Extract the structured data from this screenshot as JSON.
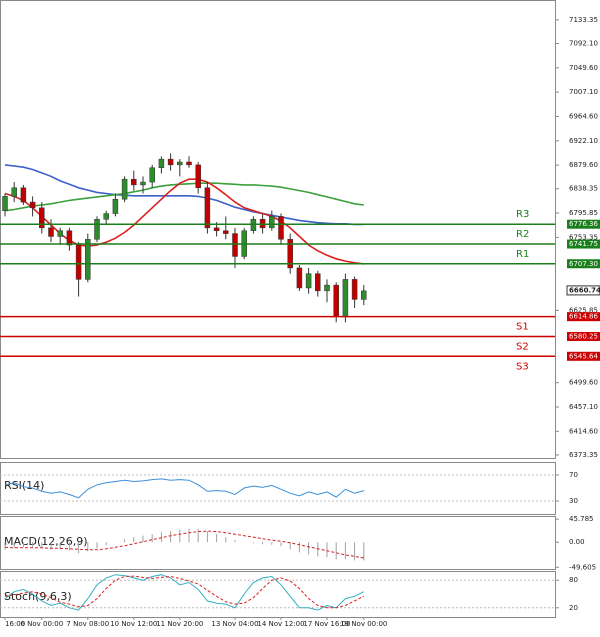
{
  "chart_data": [
    {
      "type": "candlestick",
      "categories": [
        "16:00",
        null,
        null,
        null,
        "6 Nov 00:00",
        null,
        null,
        null,
        null,
        "7 Nov 08:00",
        null,
        null,
        null,
        null,
        "10 Nov 12:00",
        null,
        null,
        null,
        null,
        "11 Nov 20:00",
        null,
        null,
        null,
        null,
        null,
        "13 Nov 04:00",
        null,
        null,
        null,
        null,
        "14 Nov 12:00",
        null,
        null,
        null,
        null,
        "17 Nov 16:00",
        null,
        null,
        null,
        "19 Nov 00:00"
      ],
      "open": [
        6800,
        6825,
        6840,
        6815,
        6805,
        6770,
        6755,
        6765,
        6740,
        6680,
        6750,
        6785,
        6795,
        6820,
        6855,
        6845,
        6850,
        6875,
        6890,
        6880,
        6885,
        6880,
        6840,
        6770,
        6765,
        6760,
        6720,
        6765,
        6785,
        6770,
        6790,
        6750,
        6700,
        6665,
        6690,
        6660,
        6670,
        6615,
        6680,
        6645
      ],
      "high": [
        6830,
        6850,
        6845,
        6825,
        6815,
        6785,
        6770,
        6770,
        6745,
        6760,
        6790,
        6800,
        6830,
        6860,
        6870,
        6860,
        6880,
        6895,
        6900,
        6890,
        6895,
        6885,
        6850,
        6780,
        6790,
        6770,
        6770,
        6790,
        6795,
        6800,
        6795,
        6760,
        6705,
        6700,
        6695,
        6680,
        6675,
        6690,
        6685,
        6670
      ],
      "low": [
        6790,
        6815,
        6810,
        6790,
        6760,
        6745,
        6740,
        6730,
        6650,
        6675,
        6745,
        6775,
        6790,
        6815,
        6835,
        6830,
        6840,
        6865,
        6870,
        6860,
        6875,
        6830,
        6760,
        6755,
        6750,
        6700,
        6715,
        6760,
        6760,
        6765,
        6740,
        6690,
        6660,
        6655,
        6650,
        6640,
        6605,
        6605,
        6630,
        6635
      ],
      "close": [
        6825,
        6840,
        6815,
        6805,
        6770,
        6755,
        6765,
        6740,
        6680,
        6750,
        6785,
        6795,
        6820,
        6855,
        6845,
        6850,
        6875,
        6890,
        6880,
        6885,
        6880,
        6840,
        6770,
        6765,
        6760,
        6720,
        6765,
        6785,
        6770,
        6790,
        6750,
        6700,
        6665,
        6690,
        6660,
        6670,
        6615,
        6680,
        6645,
        6660
      ],
      "up_color": "#2e8b2e",
      "down_color": "#c00000",
      "lines": [
        {
          "color": "#3c5fc8",
          "values": [
            6880,
            6878,
            6876,
            6872,
            6866,
            6860,
            6852,
            6846,
            6840,
            6836,
            6832,
            6830,
            6828,
            6827,
            6826,
            6826,
            6826,
            6826,
            6826,
            6826,
            6826,
            6825,
            6822,
            6818,
            6812,
            6806,
            6802,
            6798,
            6795,
            6792,
            6789,
            6786,
            6783,
            6781,
            6779,
            6778,
            6777,
            6777,
            6776,
            6776
          ]
        },
        {
          "color": "#3ca03c",
          "values": [
            6800,
            6802,
            6805,
            6808,
            6810,
            6812,
            6815,
            6818,
            6820,
            6822,
            6824,
            6826,
            6828,
            6830,
            6833,
            6836,
            6840,
            6843,
            6845,
            6846,
            6847,
            6848,
            6848,
            6848,
            6847,
            6846,
            6845,
            6845,
            6844,
            6843,
            6841,
            6838,
            6835,
            6832,
            6828,
            6824,
            6820,
            6816,
            6812,
            6810
          ]
        },
        {
          "color": "#d82020",
          "values": [
            6830,
            6825,
            6818,
            6805,
            6790,
            6775,
            6760,
            6748,
            6740,
            6738,
            6740,
            6745,
            6752,
            6762,
            6775,
            6790,
            6805,
            6820,
            6835,
            6848,
            6855,
            6855,
            6850,
            6840,
            6828,
            6815,
            6805,
            6800,
            6795,
            6790,
            6782,
            6770,
            6755,
            6740,
            6730,
            6722,
            6716,
            6712,
            6709,
            6707
          ]
        }
      ],
      "levels": [
        {
          "label": "R3",
          "value": 6776.36,
          "color": "#1a7f1a"
        },
        {
          "label": "R2",
          "value": 6741.75,
          "color": "#1a7f1a"
        },
        {
          "label": "R1",
          "value": 6707.3,
          "value_label": "6707.30",
          "color": "#1a7f1a"
        },
        {
          "label": "S1",
          "value": 6614.86,
          "color": "#cc0000"
        },
        {
          "label": "S2",
          "value": 6580.25,
          "color": "#cc0000"
        },
        {
          "label": "S3",
          "value": 6545.64,
          "color": "#cc0000"
        }
      ],
      "last_price": 6660.74,
      "ylim": [
        6368,
        7168
      ],
      "yticks": [
        7133.35,
        {
          "value": 7092.1,
          "label": "7092.10"
        },
        {
          "value": 7049.6,
          "label": "7049.60"
        },
        {
          "value": 7007.1,
          "label": "7007.10"
        },
        {
          "value": 6964.6,
          "label": "6964.60"
        },
        {
          "value": 6922.1,
          "label": "6922.10"
        },
        {
          "value": 6879.6,
          "label": "6879.60"
        },
        6838.35,
        6795.85,
        6753.35,
        6625.85,
        {
          "value": 6499.6,
          "label": "6499.60"
        },
        {
          "value": 6457.1,
          "label": "6457.10"
        },
        {
          "value": 6414.6,
          "label": "6414.60"
        },
        6373.35
      ]
    },
    {
      "type": "line",
      "title": "RSI(14)",
      "ylim": [
        10,
        90
      ],
      "yticks": [
        70,
        30
      ],
      "series": [
        {
          "color": "#3a8fd8",
          "values": [
            55,
            58,
            52,
            50,
            45,
            42,
            44,
            40,
            35,
            48,
            55,
            58,
            60,
            62,
            60,
            61,
            63,
            64,
            62,
            63,
            62,
            55,
            45,
            46,
            45,
            40,
            50,
            53,
            51,
            54,
            48,
            42,
            38,
            44,
            40,
            44,
            36,
            48,
            42,
            46
          ]
        }
      ]
    },
    {
      "type": "macd",
      "title": "MACD(12,26,9)",
      "ylim": [
        -53,
        52
      ],
      "yticks": [
        45.785,
        {
          "value": 0,
          "label": "0.00"
        },
        -49.605
      ],
      "histogram": {
        "color": "#a0a0a0",
        "values": [
          -15,
          -12,
          -10,
          -9,
          -12,
          -14,
          -14,
          -16,
          -22,
          -18,
          -12,
          -6,
          0,
          6,
          10,
          13,
          16,
          20,
          22,
          25,
          27,
          26,
          22,
          16,
          10,
          4,
          0,
          -2,
          -4,
          -5,
          -8,
          -14,
          -20,
          -24,
          -28,
          -30,
          -34,
          -34,
          -36,
          -36
        ]
      },
      "series": [
        {
          "color": "#d82020",
          "dashed": true,
          "values": [
            -10,
            -11,
            -11,
            -11,
            -11,
            -12,
            -12,
            -13,
            -14,
            -15,
            -15,
            -13,
            -10,
            -7,
            -3,
            1,
            5,
            9,
            13,
            16,
            19,
            21,
            22,
            21,
            19,
            16,
            13,
            10,
            7,
            4,
            2,
            -1,
            -5,
            -9,
            -13,
            -17,
            -21,
            -25,
            -28,
            -31
          ]
        }
      ]
    },
    {
      "type": "line",
      "title": "Stoch(9,6,3)",
      "ylim": [
        0,
        100
      ],
      "yticks": [
        80,
        20
      ],
      "series": [
        {
          "color": "#30b0c0",
          "values": [
            40,
            55,
            60,
            50,
            35,
            25,
            30,
            20,
            15,
            40,
            70,
            85,
            92,
            90,
            85,
            80,
            88,
            92,
            85,
            70,
            75,
            60,
            35,
            30,
            28,
            20,
            50,
            75,
            85,
            88,
            70,
            45,
            20,
            20,
            15,
            25,
            20,
            40,
            45,
            55
          ]
        },
        {
          "color": "#d82020",
          "dashed": true,
          "values": [
            45,
            48,
            52,
            55,
            50,
            42,
            32,
            28,
            22,
            25,
            40,
            62,
            80,
            88,
            89,
            86,
            84,
            86,
            88,
            84,
            78,
            72,
            58,
            45,
            33,
            28,
            30,
            42,
            62,
            80,
            85,
            78,
            62,
            40,
            25,
            20,
            20,
            25,
            35,
            45
          ]
        }
      ]
    }
  ]
}
